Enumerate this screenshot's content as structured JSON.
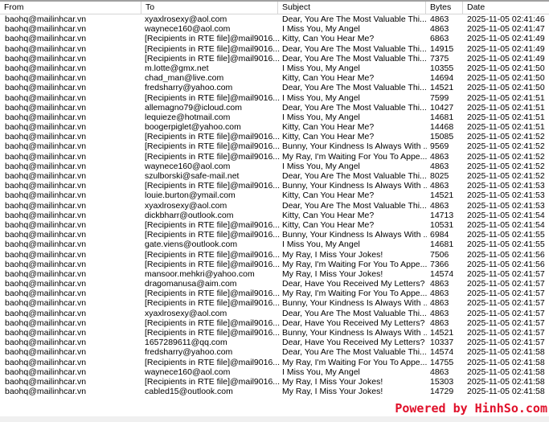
{
  "columns": [
    "From",
    "To",
    "Subject",
    "Bytes",
    "Date"
  ],
  "rows": [
    [
      "baohq@mailinhcar.vn",
      "xyaxlrosexy@aol.com",
      "Dear, You Are The Most Valuable Thi...",
      "4863",
      "2025-11-05 02:41:46"
    ],
    [
      "baohq@mailinhcar.vn",
      "waynece160@aol.com",
      "I Miss You, My Angel",
      "4863",
      "2025-11-05 02:41:47"
    ],
    [
      "baohq@mailinhcar.vn",
      "[Recipients in RTE file]@mail9016...",
      "Kitty, Can You Hear Me?",
      "6863",
      "2025-11-05 02:41:49"
    ],
    [
      "baohq@mailinhcar.vn",
      "[Recipients in RTE file]@mail9016...",
      "Dear, You Are The Most Valuable Thi...",
      "14915",
      "2025-11-05 02:41:49"
    ],
    [
      "baohq@mailinhcar.vn",
      "[Recipients in RTE file]@mail9016...",
      "Dear, You Are The Most Valuable Thi...",
      "7375",
      "2025-11-05 02:41:49"
    ],
    [
      "baohq@mailinhcar.vn",
      "m.lotte@gmx.net",
      "I Miss You, My Angel",
      "10355",
      "2025-11-05 02:41:50"
    ],
    [
      "baohq@mailinhcar.vn",
      "chad_man@live.com",
      "Kitty, Can You Hear Me?",
      "14694",
      "2025-11-05 02:41:50"
    ],
    [
      "baohq@mailinhcar.vn",
      "fredsharry@yahoo.com",
      "Dear, You Are The Most Valuable Thi...",
      "14521",
      "2025-11-05 02:41:50"
    ],
    [
      "baohq@mailinhcar.vn",
      "[Recipients in RTE file]@mail9016...",
      "I Miss You, My Angel",
      "7599",
      "2025-11-05 02:41:51"
    ],
    [
      "baohq@mailinhcar.vn",
      "allemagno79@icloud.com",
      "Dear, You Are The Most Valuable Thi...",
      "10427",
      "2025-11-05 02:41:51"
    ],
    [
      "baohq@mailinhcar.vn",
      "lequieze@hotmail.com",
      "I Miss You, My Angel",
      "14681",
      "2025-11-05 02:41:51"
    ],
    [
      "baohq@mailinhcar.vn",
      "boogerpiglet@yahoo.com",
      "Kitty, Can You Hear Me?",
      "14468",
      "2025-11-05 02:41:51"
    ],
    [
      "baohq@mailinhcar.vn",
      "[Recipients in RTE file]@mail9016...",
      "Kitty, Can You Hear Me?",
      "15085",
      "2025-11-05 02:41:52"
    ],
    [
      "baohq@mailinhcar.vn",
      "[Recipients in RTE file]@mail9016...",
      "Bunny, Your Kindness Is Always With ...",
      "9569",
      "2025-11-05 02:41:52"
    ],
    [
      "baohq@mailinhcar.vn",
      "[Recipients in RTE file]@mail9016...",
      "My Ray, I'm Waiting For You To Appe...",
      "4863",
      "2025-11-05 02:41:52"
    ],
    [
      "baohq@mailinhcar.vn",
      "waynece160@aol.com",
      "I Miss You, My Angel",
      "4863",
      "2025-11-05 02:41:52"
    ],
    [
      "baohq@mailinhcar.vn",
      "szulborski@safe-mail.net",
      "Dear, You Are The Most Valuable Thi...",
      "8025",
      "2025-11-05 02:41:52"
    ],
    [
      "baohq@mailinhcar.vn",
      "[Recipients in RTE file]@mail9016...",
      "Bunny, Your Kindness Is Always With ...",
      "4863",
      "2025-11-05 02:41:53"
    ],
    [
      "baohq@mailinhcar.vn",
      "louie.burton@ymail.com",
      "Kitty, Can You Hear Me?",
      "14521",
      "2025-11-05 02:41:53"
    ],
    [
      "baohq@mailinhcar.vn",
      "xyaxlrosexy@aol.com",
      "Dear, You Are The Most Valuable Thi...",
      "4863",
      "2025-11-05 02:41:53"
    ],
    [
      "baohq@mailinhcar.vn",
      "dickbharr@outlook.com",
      "Kitty, Can You Hear Me?",
      "14713",
      "2025-11-05 02:41:54"
    ],
    [
      "baohq@mailinhcar.vn",
      "[Recipients in RTE file]@mail9016...",
      "Kitty, Can You Hear Me?",
      "10531",
      "2025-11-05 02:41:54"
    ],
    [
      "baohq@mailinhcar.vn",
      "[Recipients in RTE file]@mail9016...",
      "Bunny, Your Kindness Is Always With ...",
      "6984",
      "2025-11-05 02:41:55"
    ],
    [
      "baohq@mailinhcar.vn",
      "gate.viens@outlook.com",
      "I Miss You, My Angel",
      "14681",
      "2025-11-05 02:41:55"
    ],
    [
      "baohq@mailinhcar.vn",
      "[Recipients in RTE file]@mail9016...",
      "My Ray, I Miss Your Jokes!",
      "7506",
      "2025-11-05 02:41:56"
    ],
    [
      "baohq@mailinhcar.vn",
      "[Recipients in RTE file]@mail9016...",
      "My Ray, I'm Waiting For You To Appe...",
      "7366",
      "2025-11-05 02:41:56"
    ],
    [
      "baohq@mailinhcar.vn",
      "mansoor.mehkri@yahoo.com",
      "My Ray, I Miss Your Jokes!",
      "14574",
      "2025-11-05 02:41:57"
    ],
    [
      "baohq@mailinhcar.vn",
      "dragomanusa@aim.com",
      "Dear, Have You Received My Letters?",
      "4863",
      "2025-11-05 02:41:57"
    ],
    [
      "baohq@mailinhcar.vn",
      "[Recipients in RTE file]@mail9016...",
      "My Ray, I'm Waiting For You To Appe...",
      "4863",
      "2025-11-05 02:41:57"
    ],
    [
      "baohq@mailinhcar.vn",
      "[Recipients in RTE file]@mail9016...",
      "Bunny, Your Kindness Is Always With ...",
      "4863",
      "2025-11-05 02:41:57"
    ],
    [
      "baohq@mailinhcar.vn",
      "xyaxlrosexy@aol.com",
      "Dear, You Are The Most Valuable Thi...",
      "4863",
      "2025-11-05 02:41:57"
    ],
    [
      "baohq@mailinhcar.vn",
      "[Recipients in RTE file]@mail9016...",
      "Dear, Have You Received My Letters?",
      "4863",
      "2025-11-05 02:41:57"
    ],
    [
      "baohq@mailinhcar.vn",
      "[Recipients in RTE file]@mail9016...",
      "Bunny, Your Kindness Is Always With ...",
      "14521",
      "2025-11-05 02:41:57"
    ],
    [
      "baohq@mailinhcar.vn",
      "1657289611@qq.com",
      "Dear, Have You Received My Letters?",
      "10337",
      "2025-11-05 02:41:57"
    ],
    [
      "baohq@mailinhcar.vn",
      "fredsharry@yahoo.com",
      "Dear, You Are The Most Valuable Thi...",
      "14574",
      "2025-11-05 02:41:58"
    ],
    [
      "baohq@mailinhcar.vn",
      "[Recipients in RTE file]@mail9016...",
      "My Ray, I'm Waiting For You To Appe...",
      "14755",
      "2025-11-05 02:41:58"
    ],
    [
      "baohq@mailinhcar.vn",
      "waynece160@aol.com",
      "I Miss You, My Angel",
      "4863",
      "2025-11-05 02:41:58"
    ],
    [
      "baohq@mailinhcar.vn",
      "[Recipients in RTE file]@mail9016...",
      "My Ray, I Miss Your Jokes!",
      "15303",
      "2025-11-05 02:41:58"
    ],
    [
      "baohq@mailinhcar.vn",
      "cabled15@outlook.com",
      "My Ray, I Miss Your Jokes!",
      "14729",
      "2025-11-05 02:41:58"
    ]
  ],
  "watermark": "Powered by HinhSo.com",
  "colors": {
    "watermark": "#e0102a",
    "grid_line": "#d5d5d5"
  }
}
